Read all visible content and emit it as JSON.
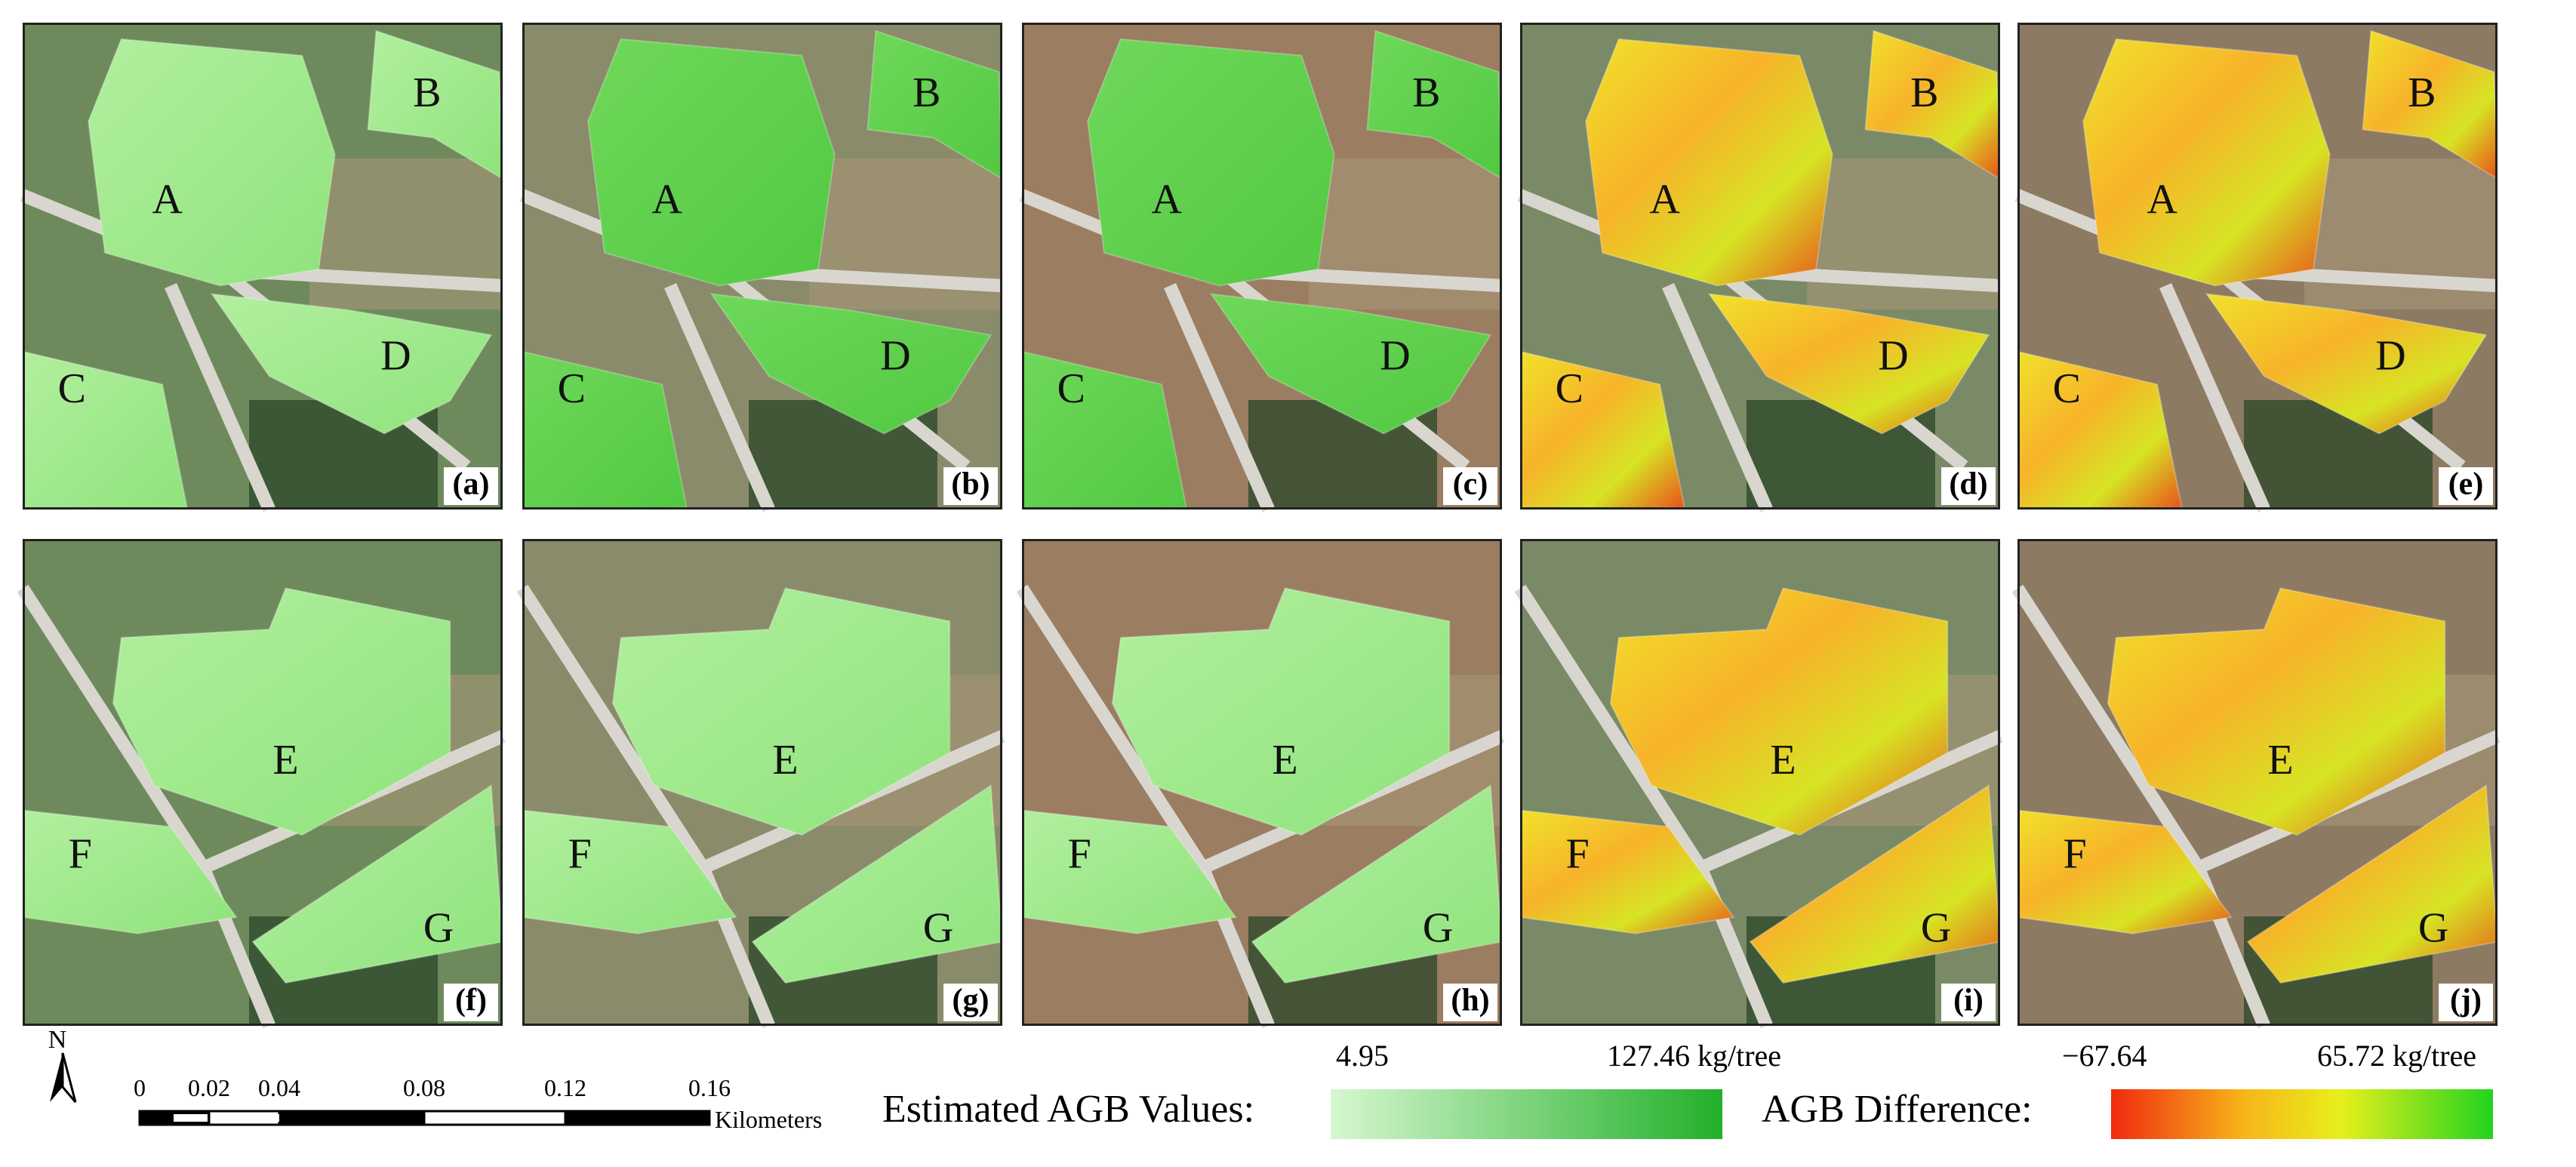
{
  "panels": [
    {
      "label": "(a)",
      "regions": [
        "A",
        "B",
        "C",
        "D"
      ]
    },
    {
      "label": "(b)",
      "regions": [
        "A",
        "B",
        "C",
        "D"
      ]
    },
    {
      "label": "(c)",
      "regions": [
        "A",
        "B",
        "C",
        "D"
      ]
    },
    {
      "label": "(d)",
      "regions": [
        "A",
        "B",
        "C",
        "D"
      ]
    },
    {
      "label": "(e)",
      "regions": [
        "A",
        "B",
        "C",
        "D"
      ]
    },
    {
      "label": "(f)",
      "regions": [
        "E",
        "F",
        "G"
      ]
    },
    {
      "label": "(g)",
      "regions": [
        "E",
        "F",
        "G"
      ]
    },
    {
      "label": "(h)",
      "regions": [
        "E",
        "F",
        "G"
      ]
    },
    {
      "label": "(i)",
      "regions": [
        "E",
        "F",
        "G"
      ]
    },
    {
      "label": "(j)",
      "regions": [
        "E",
        "F",
        "G"
      ]
    }
  ],
  "north": "N",
  "scale_bar": {
    "ticks": [
      "0",
      "0.02",
      "0.04",
      "0.08",
      "0.12",
      "0.16"
    ],
    "unit": "Kilometers"
  },
  "legend_estimated": {
    "title": "Estimated AGB Values:",
    "min": "4.95",
    "max": "127.46 kg/tree"
  },
  "legend_difference": {
    "title": "AGB Difference:",
    "min": "−67.64",
    "max": "65.72 kg/tree"
  }
}
